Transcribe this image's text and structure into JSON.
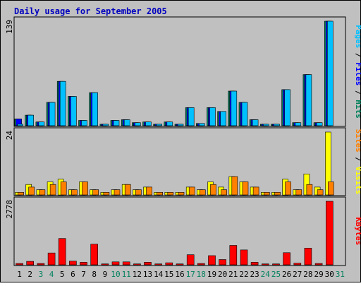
{
  "chart_data": {
    "type": "bar",
    "title": "Daily usage for September 2005",
    "categories": [
      "1",
      "2",
      "3",
      "4",
      "5",
      "6",
      "7",
      "8",
      "9",
      "10",
      "11",
      "12",
      "13",
      "14",
      "15",
      "16",
      "17",
      "18",
      "19",
      "20",
      "21",
      "22",
      "23",
      "24",
      "25",
      "26",
      "27",
      "28",
      "29",
      "30",
      "31"
    ],
    "weekend_days": [
      "3",
      "4",
      "10",
      "11",
      "17",
      "18",
      "24",
      "25",
      "31"
    ],
    "grid": true,
    "panels": [
      {
        "name": "top",
        "ymax_label": "139",
        "ylim": [
          0,
          139
        ],
        "right_label": [
          {
            "text": "Pages",
            "color": "#00c0ff"
          },
          {
            "text": " / ",
            "color": "#000000"
          },
          {
            "text": "Files",
            "color": "#0000ff"
          },
          {
            "text": " / ",
            "color": "#000000"
          },
          {
            "text": "Hits",
            "color": "#00805c"
          }
        ],
        "series": [
          {
            "name": "Hits",
            "color": "#00805c",
            "values": [
              9,
              14,
              5,
              31,
              59,
              39,
              7,
              44,
              2,
              7,
              8,
              4,
              5,
              2,
              5,
              2,
              24,
              3,
              24,
              19,
              46,
              31,
              8,
              2,
              2,
              48,
              4,
              68,
              4,
              139,
              0
            ]
          },
          {
            "name": "Files",
            "color": "#0000ff",
            "values": [
              9,
              14,
              5,
              31,
              59,
              39,
              7,
              44,
              2,
              7,
              8,
              4,
              5,
              2,
              5,
              2,
              24,
              3,
              24,
              19,
              46,
              31,
              8,
              2,
              2,
              48,
              4,
              68,
              4,
              139,
              0
            ]
          },
          {
            "name": "Pages",
            "color": "#00c0ff",
            "values": [
              2,
              14,
              5,
              31,
              59,
              39,
              7,
              44,
              2,
              7,
              8,
              4,
              5,
              2,
              5,
              2,
              24,
              3,
              24,
              19,
              46,
              31,
              8,
              2,
              2,
              48,
              4,
              68,
              4,
              139,
              0
            ]
          }
        ]
      },
      {
        "name": "middle",
        "ymax_label": "24",
        "ylim": [
          0,
          24
        ],
        "right_label": [
          {
            "text": "Sites",
            "color": "#ff8000"
          },
          {
            "text": " / ",
            "color": "#000000"
          },
          {
            "text": "Visits",
            "color": "#ffff00"
          }
        ],
        "series": [
          {
            "name": "Visits",
            "color": "#ffff00",
            "values": [
              1,
              4,
              2,
              5,
              6,
              2,
              5,
              2,
              1,
              2,
              4,
              2,
              3,
              1,
              1,
              1,
              3,
              2,
              5,
              3,
              7,
              5,
              3,
              1,
              1,
              6,
              2,
              8,
              3,
              24,
              0
            ]
          },
          {
            "name": "Sites",
            "color": "#ff8000",
            "values": [
              1,
              3,
              2,
              4,
              5,
              2,
              5,
              2,
              1,
              2,
              4,
              2,
              3,
              1,
              1,
              1,
              3,
              2,
              4,
              2,
              7,
              5,
              3,
              1,
              1,
              5,
              2,
              4,
              2,
              5,
              0
            ]
          }
        ]
      },
      {
        "name": "bottom",
        "ymax_label": "2778",
        "ylim": [
          0,
          2778
        ],
        "right_label": [
          {
            "text": "KBytes",
            "color": "#ff0000"
          }
        ],
        "series": [
          {
            "name": "KBytes",
            "color": "#ff0000",
            "values": [
              60,
              150,
              60,
              520,
              1150,
              160,
              110,
              900,
              40,
              130,
              130,
              40,
              110,
              40,
              90,
              40,
              440,
              60,
              400,
              230,
              850,
              650,
              110,
              40,
              40,
              530,
              70,
              730,
              60,
              2778,
              0
            ]
          }
        ]
      }
    ]
  },
  "colors": {
    "frame": "#c0c0c0",
    "title": "#0000c0",
    "plot_bg": "#c0c0c0",
    "grid": "#808080",
    "weekday_label": "#000000",
    "weekend_label": "#00805c"
  }
}
